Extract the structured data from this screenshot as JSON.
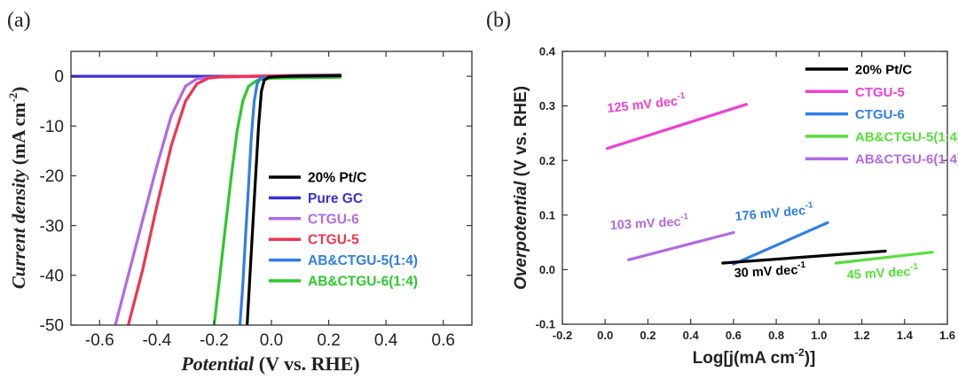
{
  "panels": [
    {
      "panel_label": "(a)",
      "type": "line",
      "xlabel_italic": "Potential",
      "xlabel_rest": " (V vs. RHE)",
      "ylabel_italic": "Current density",
      "ylabel_rest": " (mA cm",
      "ylabel_sup": "-2",
      "ylabel_close": ")",
      "xlim": [
        -0.7,
        0.7
      ],
      "ylim": [
        -50,
        5
      ],
      "xticks": [
        -0.6,
        -0.4,
        -0.2,
        0.0,
        0.2,
        0.4,
        0.6
      ],
      "xtick_labels": [
        "-0.6",
        "-0.4",
        "-0.2",
        "0.0",
        "0.2",
        "0.4",
        "0.6"
      ],
      "yticks": [
        0,
        -10,
        -20,
        -30,
        -40,
        -50
      ],
      "ytick_labels": [
        "0",
        "-10",
        "-20",
        "-30",
        "-40",
        "-50"
      ],
      "legend": [
        {
          "label": "20% Pt/C",
          "color": "#000000"
        },
        {
          "label": "Pure GC",
          "color": "#3a2fd6"
        },
        {
          "label": "CTGU-6",
          "color": "#b06ae6"
        },
        {
          "label": "CTGU-5",
          "color": "#f0334f"
        },
        {
          "label": "AB&CTGU-5(1:4)",
          "color": "#2f7fe6"
        },
        {
          "label": "AB&CTGU-6(1:4)",
          "color": "#2cc92c"
        }
      ],
      "series": [
        {
          "name": "Pure GC",
          "color": "#3a2fd6",
          "x": [
            -0.7,
            0.24
          ],
          "y": [
            0,
            0
          ]
        },
        {
          "name": "CTGU-6",
          "color": "#b06ae6",
          "x": [
            -0.545,
            -0.5,
            -0.45,
            -0.4,
            -0.35,
            -0.3,
            -0.26,
            -0.2,
            -0.1,
            0.1,
            0.24
          ],
          "y": [
            -50,
            -40,
            -29,
            -18,
            -8,
            -2,
            -0.5,
            -0.2,
            -0.1,
            0,
            0.1
          ]
        },
        {
          "name": "CTGU-5",
          "color": "#f0334f",
          "x": [
            -0.5,
            -0.45,
            -0.4,
            -0.35,
            -0.3,
            -0.26,
            -0.22,
            -0.18,
            -0.1,
            0.1,
            0.24
          ],
          "y": [
            -50,
            -39,
            -26,
            -14,
            -5,
            -1.5,
            -0.4,
            -0.1,
            0,
            0.2,
            0.3
          ]
        },
        {
          "name": "AB&CTGU-6(1:4)",
          "color": "#2cc92c",
          "x": [
            -0.2,
            -0.18,
            -0.16,
            -0.14,
            -0.12,
            -0.1,
            -0.08,
            -0.05,
            0.0,
            0.1,
            0.24
          ],
          "y": [
            -50,
            -40,
            -30,
            -20,
            -11,
            -5,
            -2,
            -0.8,
            -0.4,
            -0.3,
            -0.2
          ]
        },
        {
          "name": "AB&CTGU-5(1:4)",
          "color": "#2f7fe6",
          "x": [
            -0.11,
            -0.1,
            -0.09,
            -0.08,
            -0.07,
            -0.06,
            -0.05,
            -0.04,
            -0.02,
            0.1,
            0.24
          ],
          "y": [
            -50,
            -42,
            -32,
            -22,
            -12,
            -5,
            -1.5,
            -0.5,
            -0.2,
            0.1,
            0.2
          ]
        },
        {
          "name": "20% Pt/C",
          "color": "#000000",
          "x": [
            -0.085,
            -0.075,
            -0.065,
            -0.055,
            -0.045,
            -0.035,
            -0.025,
            -0.01,
            0.05,
            0.24
          ],
          "y": [
            -50,
            -40,
            -30,
            -20,
            -10,
            -3,
            -0.8,
            -0.2,
            0,
            0.1
          ]
        }
      ]
    },
    {
      "panel_label": "(b)",
      "type": "line",
      "xlabel": "Log[j(mA cm",
      "xlabel_sup": "-2",
      "xlabel_close": ")]",
      "ylabel_italic": "Overpotential",
      "ylabel_rest": " (V vs. RHE)",
      "xlim": [
        -0.2,
        1.6
      ],
      "ylim": [
        -0.1,
        0.4
      ],
      "xticks": [
        -0.2,
        0.0,
        0.2,
        0.4,
        0.6,
        0.8,
        1.0,
        1.2,
        1.4,
        1.6
      ],
      "xtick_labels": [
        "-0.2",
        "0.0",
        "0.2",
        "0.4",
        "0.6",
        "0.8",
        "1.0",
        "1.2",
        "1.4",
        "1.6"
      ],
      "yticks": [
        -0.1,
        0.0,
        0.1,
        0.2,
        0.3,
        0.4
      ],
      "ytick_labels": [
        "-0.1",
        "0.0",
        "0.1",
        "0.2",
        "0.3",
        "0.4"
      ],
      "legend": [
        {
          "label": "20% Pt/C",
          "color": "#000000"
        },
        {
          "label": "CTGU-5",
          "color": "#f03fcf"
        },
        {
          "label": "CTGU-6",
          "color": "#2f7fe6"
        },
        {
          "label": "AB&CTGU-5(1:4)",
          "color": "#55e03a"
        },
        {
          "label": "AB&CTGU-6(1:4)",
          "color": "#b06ae6"
        }
      ],
      "series": [
        {
          "name": "CTGU-5",
          "color": "#f03fcf",
          "x": [
            0.01,
            0.66
          ],
          "y": [
            0.222,
            0.303
          ]
        },
        {
          "name": "AB&CTGU-6(1:4)",
          "color": "#b06ae6",
          "x": [
            0.11,
            0.6
          ],
          "y": [
            0.018,
            0.068
          ]
        },
        {
          "name": "CTGU-6",
          "color": "#2f7fe6",
          "x": [
            0.6,
            1.04
          ],
          "y": [
            0.01,
            0.086
          ]
        },
        {
          "name": "20% Pt/C",
          "color": "#000000",
          "x": [
            0.55,
            1.31
          ],
          "y": [
            0.012,
            0.034
          ]
        },
        {
          "name": "AB&CTGU-5(1:4)",
          "color": "#55e03a",
          "x": [
            1.08,
            1.53
          ],
          "y": [
            0.012,
            0.032
          ]
        }
      ],
      "annotations": [
        {
          "text": "125 mV dec",
          "sup": "-1",
          "color": "#f03fcf"
        },
        {
          "text": "103 mV dec",
          "sup": "-1",
          "color": "#b06ae6"
        },
        {
          "text": "176 mV dec",
          "sup": "-1",
          "color": "#2f7fe6"
        },
        {
          "text": "30 mV dec",
          "sup": "-1",
          "color": "#000000"
        },
        {
          "text": "45 mV dec",
          "sup": "-1",
          "color": "#55e03a"
        }
      ]
    }
  ]
}
